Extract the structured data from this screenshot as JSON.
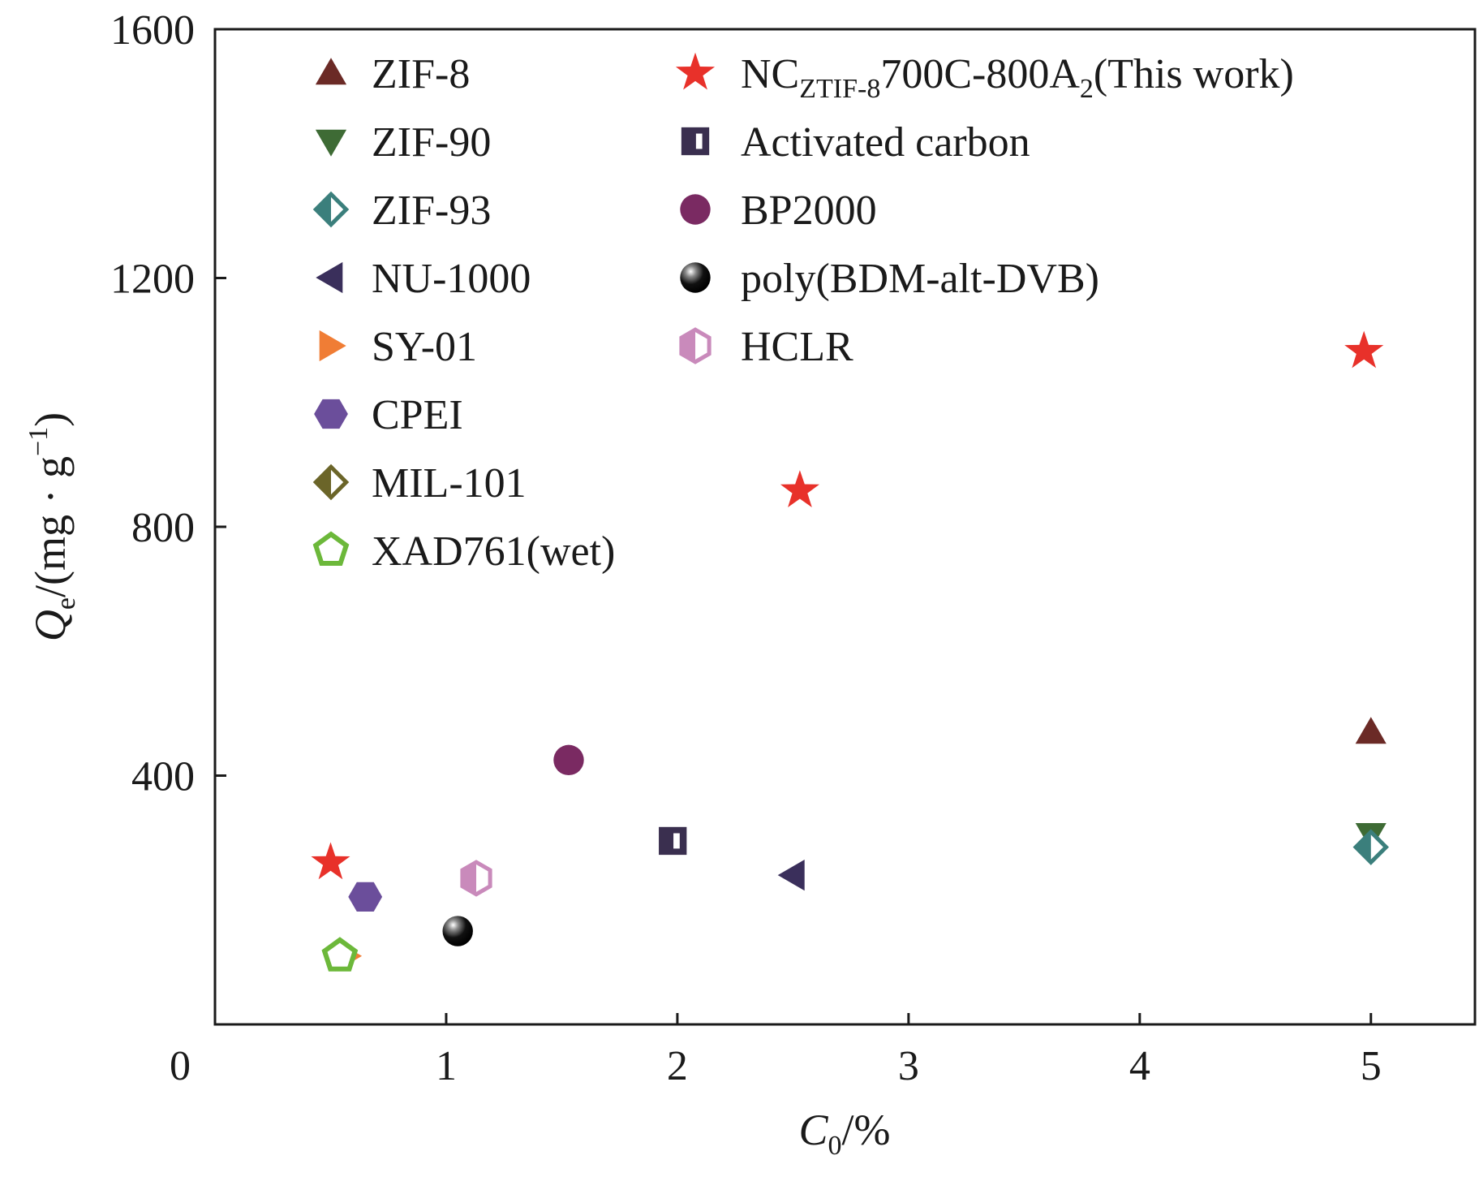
{
  "chart_data": {
    "type": "scatter",
    "xlabel": {
      "main": "C",
      "sub": "0",
      "rest": "/%"
    },
    "ylabel": {
      "main": "Q",
      "sub": "e",
      "rest": "/(mg · g",
      "sup": "−1",
      "close": ")"
    },
    "xlim": [
      0,
      5.45
    ],
    "ylim": [
      0,
      1600
    ],
    "xticks": [
      0,
      1,
      2,
      3,
      4,
      5
    ],
    "yticks": [
      0,
      400,
      800,
      1200,
      1600
    ],
    "x_tick_labels": [
      "0",
      "1",
      "2",
      "3",
      "4",
      "5"
    ],
    "y_tick_labels": [
      "0",
      "400",
      "800",
      "1200",
      "1600"
    ],
    "series": [
      {
        "name": "ZIF-8",
        "label": {
          "text": "ZIF-8"
        },
        "marker": "triangle-up",
        "color": "#6b2a26",
        "points": [
          [
            5.0,
            470
          ]
        ]
      },
      {
        "name": "ZIF-90",
        "label": {
          "text": "ZIF-90"
        },
        "marker": "triangle-down",
        "color": "#3e6b35",
        "points": [
          [
            5.0,
            305
          ]
        ]
      },
      {
        "name": "ZIF-93",
        "label": {
          "text": "ZIF-93"
        },
        "marker": "diamond-half",
        "color": "#3b7f7c",
        "points": [
          [
            5.0,
            285
          ]
        ]
      },
      {
        "name": "NU-1000",
        "label": {
          "text": "NU-1000"
        },
        "marker": "triangle-left",
        "color": "#3a2f5b",
        "points": [
          [
            2.5,
            240
          ]
        ]
      },
      {
        "name": "SY-01",
        "label": {
          "text": "SY-01"
        },
        "marker": "triangle-right",
        "color": "#f07d35",
        "points": [
          [
            0.57,
            110
          ]
        ]
      },
      {
        "name": "CPEI",
        "label": {
          "text": "CPEI"
        },
        "marker": "hexagon",
        "color": "#6b4e9b",
        "points": [
          [
            0.65,
            205
          ]
        ]
      },
      {
        "name": "MIL-101",
        "label": {
          "text": "MIL-101"
        },
        "marker": "diamond-half",
        "color": "#6b6529",
        "points": []
      },
      {
        "name": "XAD761(wet)",
        "label": {
          "text": "XAD761(wet)"
        },
        "marker": "pentagon-open",
        "color": "#6cb83a",
        "points": [
          [
            0.54,
            110
          ]
        ]
      },
      {
        "name": "NCZTIF-8700C-800A2(This work)",
        "label": {
          "main": "NC",
          "sub1": "ZTIF-8",
          "mid": "700C-800A",
          "sub2": "2",
          "end": "(This work)"
        },
        "marker": "star",
        "color": "#e8312a",
        "points": [
          [
            0.5,
            260
          ],
          [
            2.53,
            858
          ],
          [
            4.97,
            1082
          ]
        ]
      },
      {
        "name": "Activated carbon",
        "label": {
          "text": "Activated carbon"
        },
        "marker": "square-half",
        "color": "#3a2f4f",
        "points": [
          [
            1.98,
            295
          ]
        ]
      },
      {
        "name": "BP2000",
        "label": {
          "text": "BP2000"
        },
        "marker": "circle",
        "color": "#7a2a62",
        "points": [
          [
            1.53,
            425
          ]
        ]
      },
      {
        "name": "poly(BDM-alt-DVB)",
        "label": {
          "text": "poly(BDM-alt-DVB)"
        },
        "marker": "sphere",
        "color": "#111111",
        "points": [
          [
            1.05,
            150
          ]
        ]
      },
      {
        "name": "HCLR",
        "label": {
          "text": "HCLR"
        },
        "marker": "hexagon-half",
        "color": "#c98abb",
        "points": [
          [
            1.13,
            235
          ]
        ]
      }
    ]
  }
}
